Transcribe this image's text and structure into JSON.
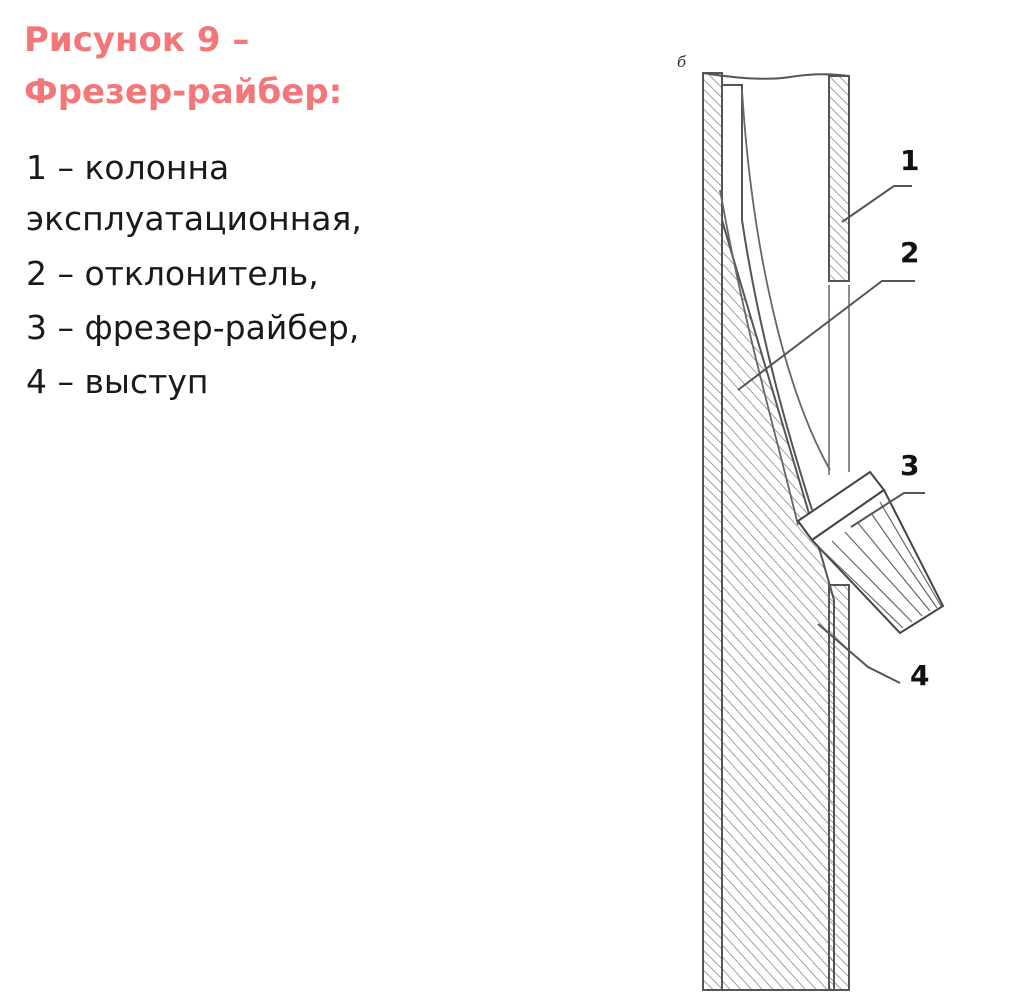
{
  "title": {
    "line1": "Рисунок 9 –",
    "line2": "Фрезер-райбер:"
  },
  "legend": {
    "item1_line1": "1 – колонна",
    "item1_line2": "эксплуатационная,",
    "item2": "2 – отклонитель,",
    "item3": "3 – фрезер-райбер,",
    "item4": "4 – выступ"
  },
  "diagram": {
    "view_mark": "б",
    "callouts": [
      "1",
      "2",
      "3",
      "4"
    ]
  },
  "colors": {
    "title": "#f47678",
    "text": "#1a1a1a",
    "line": "#555555"
  }
}
